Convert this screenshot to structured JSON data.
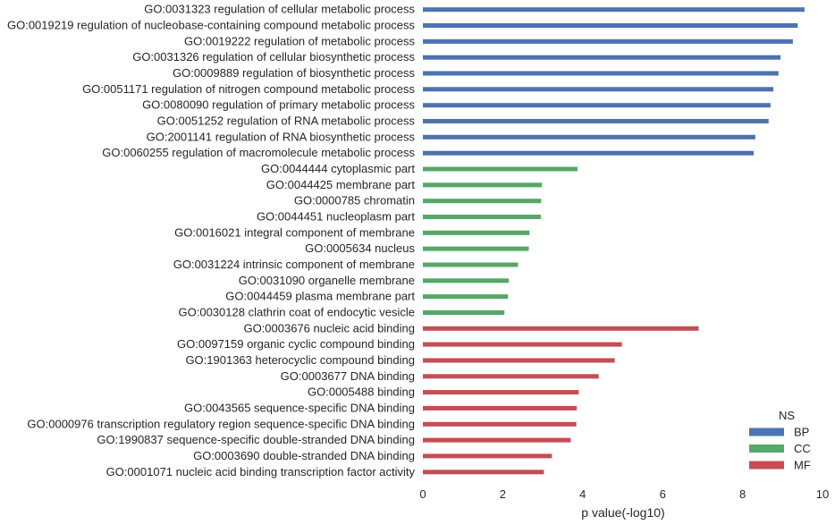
{
  "chart_data": {
    "type": "bar",
    "orientation": "horizontal",
    "title": "",
    "xlabel": "p value(-log10)",
    "ylabel": "",
    "xlim": [
      0,
      10
    ],
    "xticks": [
      "0",
      "2",
      "4",
      "6",
      "8",
      "10"
    ],
    "grid": false,
    "legend": {
      "title": "NS",
      "placement": "bottom-right",
      "entries": [
        {
          "name": "BP",
          "color": "#4c72b0"
        },
        {
          "name": "CC",
          "color": "#55a868"
        },
        {
          "name": "MF",
          "color": "#c44e52"
        }
      ]
    },
    "categories": [
      {
        "label": "GO:0031323 regulation of cellular metabolic process",
        "value": 9.55,
        "ns": "BP"
      },
      {
        "label": "GO:0019219 regulation of nucleobase-containing compound metabolic process",
        "value": 9.38,
        "ns": "BP"
      },
      {
        "label": "GO:0019222 regulation of metabolic process",
        "value": 9.26,
        "ns": "BP"
      },
      {
        "label": "GO:0031326 regulation of cellular biosynthetic process",
        "value": 8.95,
        "ns": "BP"
      },
      {
        "label": "GO:0009889 regulation of biosynthetic process",
        "value": 8.9,
        "ns": "BP"
      },
      {
        "label": "GO:0051171 regulation of nitrogen compound metabolic process",
        "value": 8.77,
        "ns": "BP"
      },
      {
        "label": "GO:0080090 regulation of primary metabolic process",
        "value": 8.7,
        "ns": "BP"
      },
      {
        "label": "GO:0051252 regulation of RNA metabolic process",
        "value": 8.65,
        "ns": "BP"
      },
      {
        "label": "GO:2001141 regulation of RNA biosynthetic process",
        "value": 8.32,
        "ns": "BP"
      },
      {
        "label": "GO:0060255 regulation of macromolecule metabolic process",
        "value": 8.28,
        "ns": "BP"
      },
      {
        "label": "GO:0044444 cytoplasmic part",
        "value": 3.87,
        "ns": "CC"
      },
      {
        "label": "GO:0044425 membrane part",
        "value": 2.98,
        "ns": "CC"
      },
      {
        "label": "GO:0000785 chromatin",
        "value": 2.96,
        "ns": "CC"
      },
      {
        "label": "GO:0044451 nucleoplasm part",
        "value": 2.95,
        "ns": "CC"
      },
      {
        "label": "GO:0016021 integral component of membrane",
        "value": 2.67,
        "ns": "CC"
      },
      {
        "label": "GO:0005634 nucleus",
        "value": 2.65,
        "ns": "CC"
      },
      {
        "label": "GO:0031224 intrinsic component of membrane",
        "value": 2.38,
        "ns": "CC"
      },
      {
        "label": "GO:0031090 organelle membrane",
        "value": 2.15,
        "ns": "CC"
      },
      {
        "label": "GO:0044459 plasma membrane part",
        "value": 2.13,
        "ns": "CC"
      },
      {
        "label": "GO:0030128 clathrin coat of endocytic vesicle",
        "value": 2.04,
        "ns": "CC"
      },
      {
        "label": "GO:0003676 nucleic acid binding",
        "value": 6.9,
        "ns": "MF"
      },
      {
        "label": "GO:0097159 organic cyclic compound binding",
        "value": 4.98,
        "ns": "MF"
      },
      {
        "label": "GO:1901363 heterocyclic compound binding",
        "value": 4.8,
        "ns": "MF"
      },
      {
        "label": "GO:0003677 DNA binding",
        "value": 4.4,
        "ns": "MF"
      },
      {
        "label": "GO:0005488 binding",
        "value": 3.9,
        "ns": "MF"
      },
      {
        "label": "GO:0043565 sequence-specific DNA binding",
        "value": 3.85,
        "ns": "MF"
      },
      {
        "label": "GO:0000976 transcription regulatory region sequence-specific DNA binding",
        "value": 3.84,
        "ns": "MF"
      },
      {
        "label": "GO:1990837 sequence-specific double-stranded DNA binding",
        "value": 3.7,
        "ns": "MF"
      },
      {
        "label": "GO:0003690 double-stranded DNA binding",
        "value": 3.23,
        "ns": "MF"
      },
      {
        "label": "GO:0001071 nucleic acid binding transcription factor activity",
        "value": 3.03,
        "ns": "MF"
      }
    ]
  }
}
